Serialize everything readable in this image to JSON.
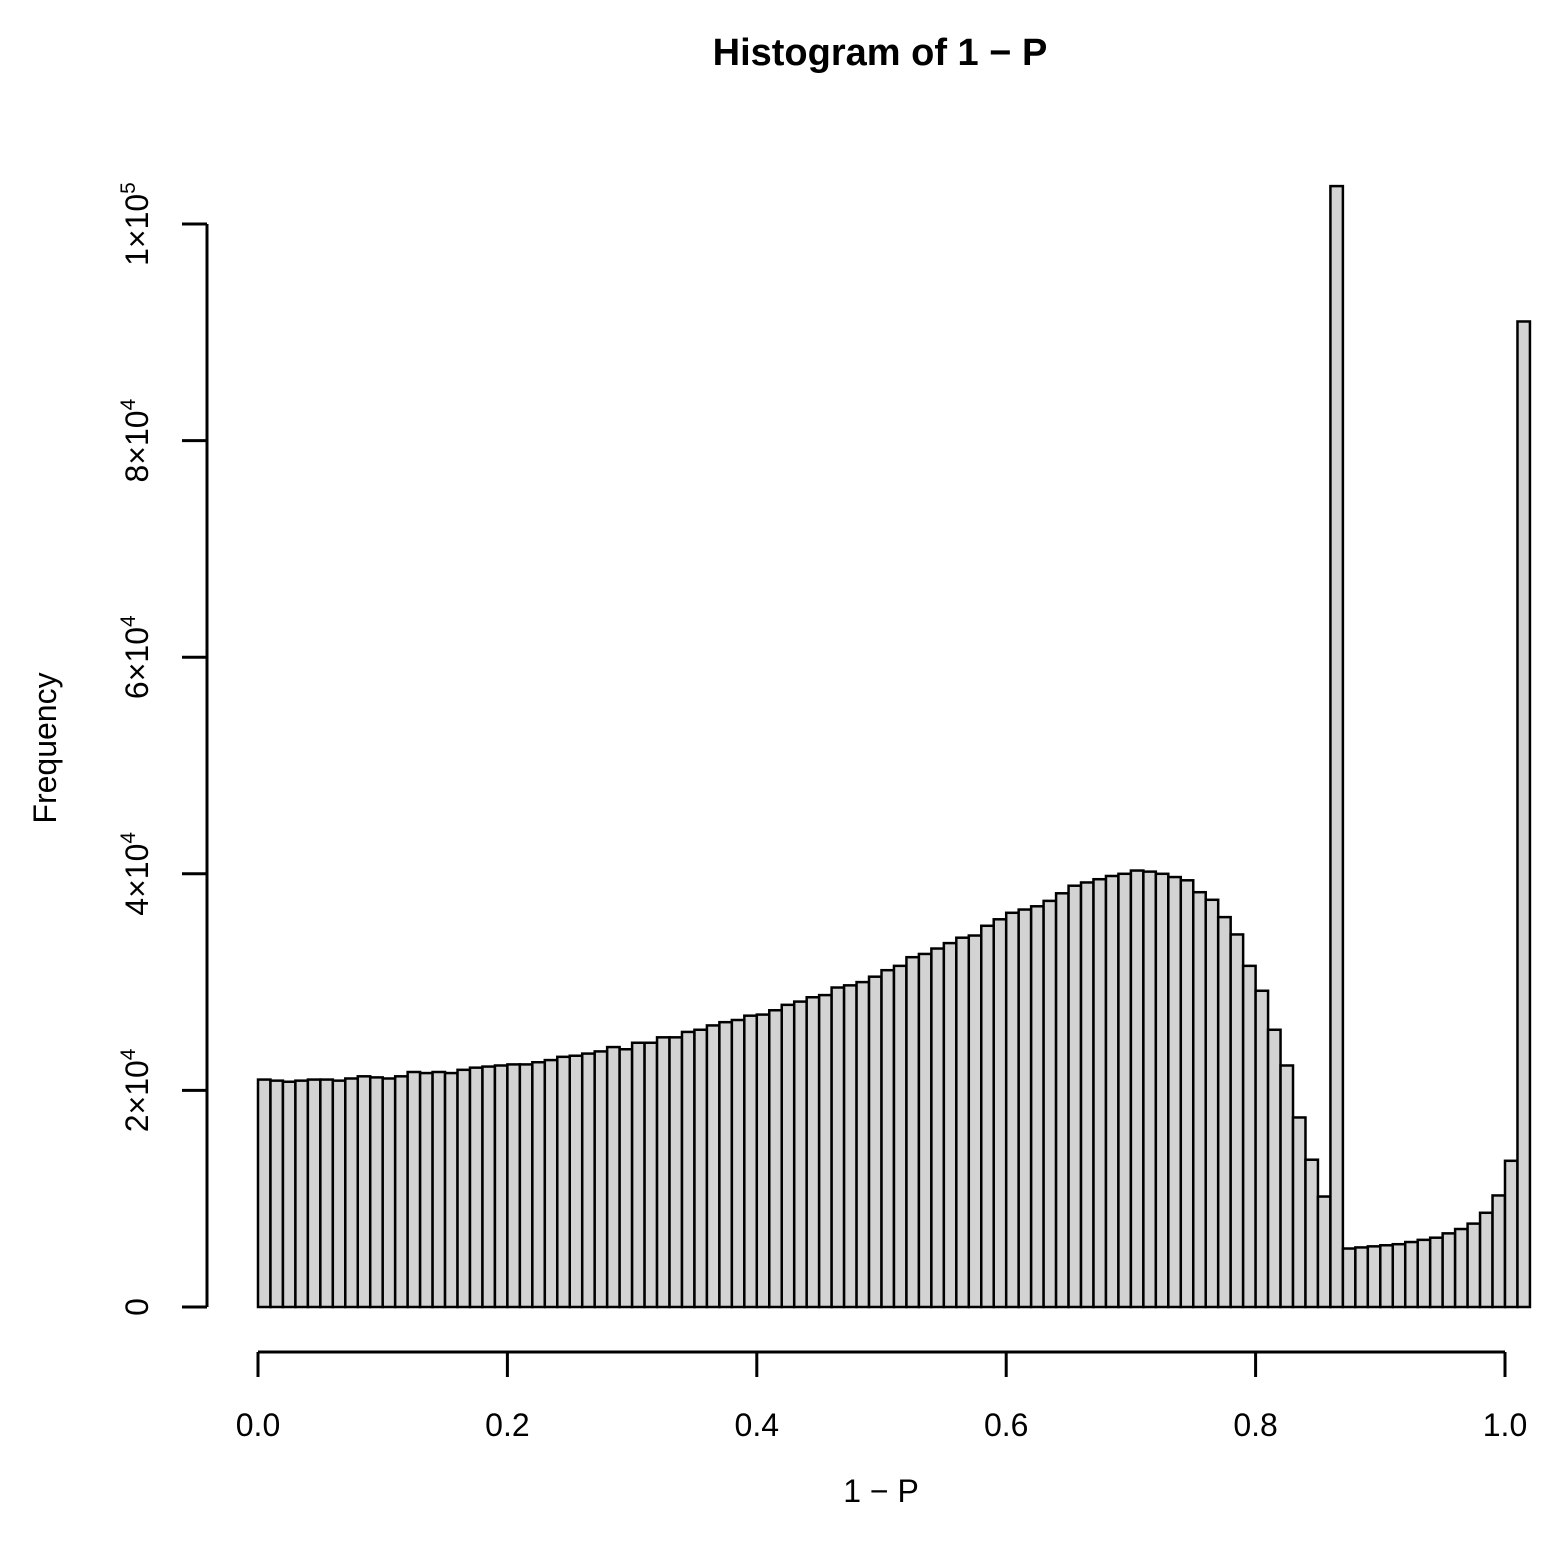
{
  "chart_data": {
    "type": "bar",
    "title": "Histogram of 1 − P",
    "xlabel": "1 − P",
    "ylabel": "Frequency",
    "xlim": [
      0,
      1
    ],
    "ylim": [
      0,
      103000
    ],
    "bin_width": 0.01,
    "x_ticks": [
      {
        "value": 0.0,
        "label": "0.0"
      },
      {
        "value": 0.2,
        "label": "0.2"
      },
      {
        "value": 0.4,
        "label": "0.4"
      },
      {
        "value": 0.6,
        "label": "0.6"
      },
      {
        "value": 0.8,
        "label": "0.8"
      },
      {
        "value": 1.0,
        "label": "1.0"
      }
    ],
    "y_ticks": [
      {
        "value": 0,
        "mantissa": "0",
        "exponent": ""
      },
      {
        "value": 20000,
        "mantissa": "2×10",
        "exponent": "4"
      },
      {
        "value": 40000,
        "mantissa": "4×10",
        "exponent": "4"
      },
      {
        "value": 60000,
        "mantissa": "6×10",
        "exponent": "4"
      },
      {
        "value": 80000,
        "mantissa": "8×10",
        "exponent": "4"
      },
      {
        "value": 100000,
        "mantissa": "1×10",
        "exponent": "5"
      }
    ],
    "bar_fill": "#d3d3d3",
    "bar_stroke": "#000000",
    "values": [
      21000,
      20900,
      20800,
      20900,
      21000,
      21000,
      20900,
      21100,
      21300,
      21200,
      21100,
      21300,
      21700,
      21600,
      21700,
      21600,
      21900,
      22100,
      22200,
      22300,
      22400,
      22400,
      22600,
      22800,
      23100,
      23200,
      23400,
      23600,
      24000,
      23800,
      24400,
      24400,
      24900,
      24900,
      25400,
      25600,
      26000,
      26300,
      26500,
      26900,
      27000,
      27400,
      27900,
      28200,
      28600,
      28800,
      29500,
      29700,
      30000,
      30500,
      31100,
      31500,
      32300,
      32600,
      33100,
      33600,
      34100,
      34300,
      35200,
      35800,
      36400,
      36700,
      37000,
      37500,
      38200,
      38900,
      39200,
      39500,
      39800,
      40000,
      40300,
      40200,
      40000,
      39700,
      39400,
      38300,
      37600,
      36000,
      34400,
      31500,
      29200,
      25600,
      22300,
      17500,
      13600,
      10200,
      103500,
      5400,
      5500,
      5600,
      5700,
      5800,
      6000,
      6200,
      6400,
      6800,
      7200,
      7700,
      8700,
      10300,
      13500,
      91000
    ]
  }
}
